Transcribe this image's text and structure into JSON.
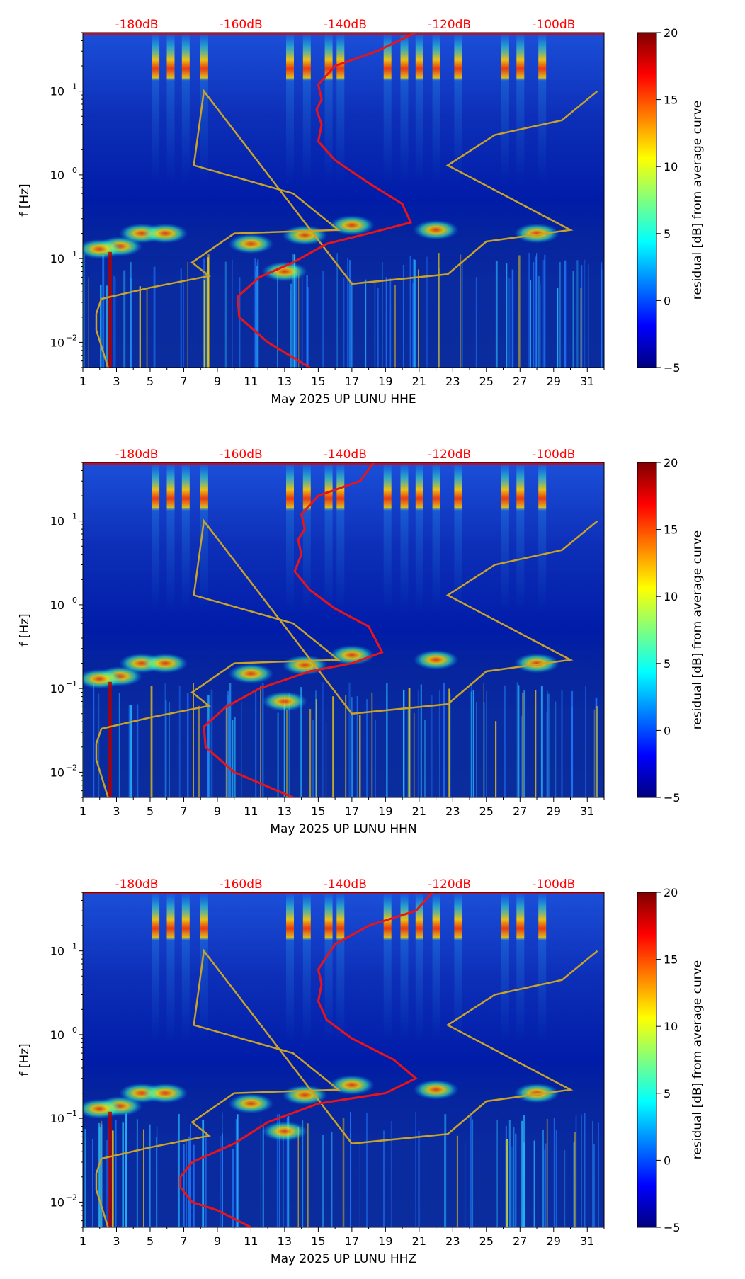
{
  "figure": {
    "colors": {
      "db_label": "#ff0000",
      "red_curve": "#e8141a",
      "gold_curve": "#c9a227",
      "plot_bg": "#00128a"
    },
    "colormap_stops": [
      "#00007f",
      "#0000ff",
      "#007fff",
      "#00ffff",
      "#7fff7f",
      "#ffff00",
      "#ff7f00",
      "#ff0000",
      "#7f0000"
    ]
  },
  "chart_data": [
    {
      "type": "heatmap",
      "channel": "HHE",
      "xlabel": "May 2025 UP LUNU  HHE",
      "ylabel": "f [Hz]",
      "xlim": [
        1,
        32
      ],
      "ylim": [
        0.005,
        50
      ],
      "yscale": "log",
      "x_ticks": [
        "1",
        "3",
        "5",
        "7",
        "9",
        "11",
        "13",
        "15",
        "17",
        "19",
        "21",
        "23",
        "25",
        "27",
        "29",
        "31"
      ],
      "y_ticks": [
        {
          "value": 0.01,
          "base": "10",
          "exp": "−2"
        },
        {
          "value": 0.1,
          "base": "10",
          "exp": "−1"
        },
        {
          "value": 1,
          "base": "10",
          "exp": "0"
        },
        {
          "value": 10,
          "base": "10",
          "exp": "1"
        }
      ],
      "db_scale": [
        {
          "label": "-180dB",
          "x": 4.2
        },
        {
          "label": "-160dB",
          "x": 10.4
        },
        {
          "label": "-140dB",
          "x": 16.6
        },
        {
          "label": "-120dB",
          "x": 22.8
        },
        {
          "label": "-100dB",
          "x": 29.0
        }
      ],
      "colorbar": {
        "label": "residual [dB] from average curve",
        "min": -5,
        "max": 20,
        "ticks": [
          "−5",
          "0",
          "5",
          "10",
          "15",
          "20"
        ]
      },
      "series": [
        {
          "name": "gold_curve",
          "points": [
            [
              2.5,
              0.005
            ],
            [
              1.8,
              0.014
            ],
            [
              1.8,
              0.022
            ],
            [
              2.1,
              0.033
            ],
            [
              5,
              0.045
            ],
            [
              8.5,
              0.062
            ],
            [
              7.5,
              0.09
            ],
            [
              10,
              0.2
            ],
            [
              16.2,
              0.22
            ],
            [
              13.5,
              0.6
            ],
            [
              7.6,
              1.3
            ],
            [
              8.2,
              10
            ],
            [
              17,
              0.05
            ],
            [
              22.7,
              0.065
            ],
            [
              25,
              0.16
            ],
            [
              30,
              0.22
            ],
            [
              22.7,
              1.3
            ],
            [
              25.5,
              3
            ],
            [
              29.5,
              4.5
            ],
            [
              31.6,
              10
            ]
          ]
        },
        {
          "name": "red_curve",
          "points": [
            [
              14.5,
              0.005
            ],
            [
              12,
              0.01
            ],
            [
              10.3,
              0.02
            ],
            [
              10.2,
              0.035
            ],
            [
              11.5,
              0.06
            ],
            [
              13.5,
              0.09
            ],
            [
              15.5,
              0.15
            ],
            [
              18,
              0.2
            ],
            [
              20.5,
              0.27
            ],
            [
              20,
              0.45
            ],
            [
              18,
              0.8
            ],
            [
              16,
              1.5
            ],
            [
              15,
              2.5
            ],
            [
              15.2,
              4
            ],
            [
              14.9,
              6
            ],
            [
              15.2,
              8
            ],
            [
              15,
              12
            ],
            [
              16,
              20
            ],
            [
              18.5,
              30
            ],
            [
              20.8,
              50
            ]
          ]
        }
      ],
      "layout_note": "heatmap cell values omitted; bright bands at ~0.07-0.3 Hz and 2-20 Hz"
    },
    {
      "type": "heatmap",
      "channel": "HHN",
      "xlabel": "May 2025 UP LUNU  HHN",
      "ylabel": "f [Hz]",
      "xlim": [
        1,
        32
      ],
      "ylim": [
        0.005,
        50
      ],
      "yscale": "log",
      "x_ticks": [
        "1",
        "3",
        "5",
        "7",
        "9",
        "11",
        "13",
        "15",
        "17",
        "19",
        "21",
        "23",
        "25",
        "27",
        "29",
        "31"
      ],
      "y_ticks": [
        {
          "value": 0.01,
          "base": "10",
          "exp": "−2"
        },
        {
          "value": 0.1,
          "base": "10",
          "exp": "−1"
        },
        {
          "value": 1,
          "base": "10",
          "exp": "0"
        },
        {
          "value": 10,
          "base": "10",
          "exp": "1"
        }
      ],
      "db_scale": [
        {
          "label": "-180dB",
          "x": 4.2
        },
        {
          "label": "-160dB",
          "x": 10.4
        },
        {
          "label": "-140dB",
          "x": 16.6
        },
        {
          "label": "-120dB",
          "x": 22.8
        },
        {
          "label": "-100dB",
          "x": 29.0
        }
      ],
      "colorbar": {
        "label": "residual [dB] from average curve",
        "min": -5,
        "max": 20,
        "ticks": [
          "−5",
          "0",
          "5",
          "10",
          "15",
          "20"
        ]
      },
      "series": [
        {
          "name": "gold_curve",
          "points": [
            [
              2.5,
              0.005
            ],
            [
              1.8,
              0.014
            ],
            [
              1.8,
              0.022
            ],
            [
              2.1,
              0.033
            ],
            [
              5,
              0.045
            ],
            [
              8.5,
              0.062
            ],
            [
              7.5,
              0.09
            ],
            [
              10,
              0.2
            ],
            [
              16.2,
              0.22
            ],
            [
              13.5,
              0.6
            ],
            [
              7.6,
              1.3
            ],
            [
              8.2,
              10
            ],
            [
              17,
              0.05
            ],
            [
              22.7,
              0.065
            ],
            [
              25,
              0.16
            ],
            [
              30,
              0.22
            ],
            [
              22.7,
              1.3
            ],
            [
              25.5,
              3
            ],
            [
              29.5,
              4.5
            ],
            [
              31.6,
              10
            ]
          ]
        },
        {
          "name": "red_curve",
          "points": [
            [
              13.5,
              0.005
            ],
            [
              10,
              0.01
            ],
            [
              8.3,
              0.02
            ],
            [
              8.2,
              0.035
            ],
            [
              9.5,
              0.06
            ],
            [
              11.5,
              0.1
            ],
            [
              14.5,
              0.16
            ],
            [
              17,
              0.2
            ],
            [
              18.8,
              0.27
            ],
            [
              18,
              0.55
            ],
            [
              16,
              0.9
            ],
            [
              14.5,
              1.5
            ],
            [
              13.6,
              2.5
            ],
            [
              14,
              4
            ],
            [
              13.8,
              6
            ],
            [
              14.2,
              8
            ],
            [
              14,
              12
            ],
            [
              15,
              20
            ],
            [
              17.5,
              30
            ],
            [
              18.3,
              50
            ]
          ]
        }
      ],
      "layout_note": "heatmap cell values omitted"
    },
    {
      "type": "heatmap",
      "channel": "HHZ",
      "xlabel": "May 2025 UP LUNU  HHZ",
      "ylabel": "f [Hz]",
      "xlim": [
        1,
        32
      ],
      "ylim": [
        0.005,
        50
      ],
      "yscale": "log",
      "x_ticks": [
        "1",
        "3",
        "5",
        "7",
        "9",
        "11",
        "13",
        "15",
        "17",
        "19",
        "21",
        "23",
        "25",
        "27",
        "29",
        "31"
      ],
      "y_ticks": [
        {
          "value": 0.01,
          "base": "10",
          "exp": "−2"
        },
        {
          "value": 0.1,
          "base": "10",
          "exp": "−1"
        },
        {
          "value": 1,
          "base": "10",
          "exp": "0"
        },
        {
          "value": 10,
          "base": "10",
          "exp": "1"
        }
      ],
      "db_scale": [
        {
          "label": "-180dB",
          "x": 4.2
        },
        {
          "label": "-160dB",
          "x": 10.4
        },
        {
          "label": "-140dB",
          "x": 16.6
        },
        {
          "label": "-120dB",
          "x": 22.8
        },
        {
          "label": "-100dB",
          "x": 29.0
        }
      ],
      "colorbar": {
        "label": "residual [dB] from average curve",
        "min": -5,
        "max": 20,
        "ticks": [
          "−5",
          "0",
          "5",
          "10",
          "15",
          "20"
        ]
      },
      "series": [
        {
          "name": "gold_curve",
          "points": [
            [
              2.5,
              0.005
            ],
            [
              1.8,
              0.014
            ],
            [
              1.8,
              0.022
            ],
            [
              2.1,
              0.033
            ],
            [
              5,
              0.045
            ],
            [
              8.5,
              0.062
            ],
            [
              7.5,
              0.09
            ],
            [
              10,
              0.2
            ],
            [
              16.2,
              0.22
            ],
            [
              13.5,
              0.6
            ],
            [
              7.6,
              1.3
            ],
            [
              8.2,
              10
            ],
            [
              17,
              0.05
            ],
            [
              22.7,
              0.065
            ],
            [
              25,
              0.16
            ],
            [
              30,
              0.22
            ],
            [
              22.7,
              1.3
            ],
            [
              25.5,
              3
            ],
            [
              29.5,
              4.5
            ],
            [
              31.6,
              10
            ]
          ]
        },
        {
          "name": "red_curve",
          "points": [
            [
              11,
              0.005
            ],
            [
              9,
              0.008
            ],
            [
              7.5,
              0.01
            ],
            [
              6.8,
              0.015
            ],
            [
              6.8,
              0.02
            ],
            [
              7.5,
              0.03
            ],
            [
              10,
              0.05
            ],
            [
              12,
              0.09
            ],
            [
              15,
              0.15
            ],
            [
              19,
              0.2
            ],
            [
              20.8,
              0.3
            ],
            [
              19.5,
              0.5
            ],
            [
              17,
              0.9
            ],
            [
              15.5,
              1.5
            ],
            [
              15,
              2.5
            ],
            [
              15.2,
              4
            ],
            [
              15,
              6
            ],
            [
              15.4,
              8
            ],
            [
              16,
              12
            ],
            [
              18,
              20
            ],
            [
              20.8,
              30
            ],
            [
              21.8,
              50
            ]
          ]
        }
      ],
      "layout_note": "heatmap cell values omitted"
    }
  ]
}
